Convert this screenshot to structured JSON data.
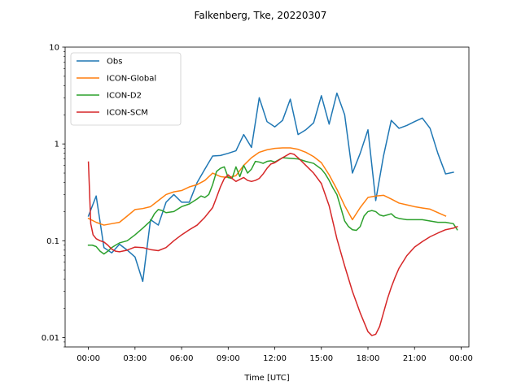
{
  "chart_data": {
    "type": "line",
    "title": "Falkenberg, Tke, 20220307",
    "xlabel": "Time [UTC]",
    "ylabel": "",
    "yscale": "log",
    "ylim": [
      0.008,
      10
    ],
    "xlim": [
      -1.5,
      24.5
    ],
    "x_unit": "hours since 00:00 UTC",
    "xticks": [
      0,
      3,
      6,
      9,
      12,
      15,
      18,
      21,
      24
    ],
    "xtick_labels": [
      "00:00",
      "03:00",
      "06:00",
      "09:00",
      "12:00",
      "15:00",
      "18:00",
      "21:00",
      "00:00"
    ],
    "yticks": [
      0.01,
      0.1,
      1,
      10
    ],
    "ytick_labels": [
      "0.01",
      "0.1",
      "1",
      "10"
    ],
    "legend_position": "top-left",
    "series": [
      {
        "name": "Obs",
        "color": "#1f77b4",
        "x": [
          0,
          0.5,
          1,
          1.5,
          2,
          2.5,
          3,
          3.5,
          4,
          4.5,
          5,
          5.5,
          6,
          6.5,
          7,
          7.5,
          8,
          8.5,
          9,
          9.5,
          10,
          10.5,
          11,
          11.5,
          12,
          12.5,
          13,
          13.5,
          14,
          14.5,
          15,
          15.5,
          16,
          16.5,
          17,
          17.5,
          18,
          18.5,
          19,
          19.5,
          20,
          20.5,
          21,
          21.5,
          22,
          22.5,
          23,
          23.5
        ],
        "values": [
          0.18,
          0.29,
          0.085,
          0.075,
          0.092,
          0.08,
          0.068,
          0.038,
          0.165,
          0.145,
          0.25,
          0.3,
          0.25,
          0.25,
          0.4,
          0.55,
          0.75,
          0.76,
          0.8,
          0.85,
          1.25,
          0.92,
          3.0,
          1.7,
          1.5,
          1.75,
          2.9,
          1.25,
          1.4,
          1.65,
          3.15,
          1.6,
          3.35,
          2.0,
          0.5,
          0.8,
          1.4,
          0.26,
          0.75,
          1.75,
          1.45,
          1.55,
          1.7,
          1.85,
          1.45,
          0.8,
          0.49,
          0.51
        ]
      },
      {
        "name": "ICON-Global",
        "color": "#ff7f0e",
        "x": [
          0,
          0.5,
          1,
          1.5,
          2,
          2.5,
          3,
          3.5,
          4,
          4.5,
          5,
          5.5,
          6,
          6.5,
          7,
          7.5,
          8,
          8.5,
          9,
          9.5,
          10,
          10.5,
          11,
          11.5,
          12,
          12.5,
          13,
          13.5,
          14,
          14.5,
          15,
          15.5,
          16,
          16.5,
          17,
          17.5,
          18,
          18.5,
          19,
          19.5,
          20,
          20.5,
          21,
          21.5,
          22,
          22.5,
          23
        ],
        "values": [
          0.17,
          0.155,
          0.145,
          0.15,
          0.155,
          0.18,
          0.21,
          0.215,
          0.225,
          0.26,
          0.3,
          0.32,
          0.33,
          0.36,
          0.38,
          0.42,
          0.5,
          0.46,
          0.45,
          0.47,
          0.6,
          0.72,
          0.82,
          0.87,
          0.9,
          0.91,
          0.91,
          0.88,
          0.82,
          0.74,
          0.64,
          0.48,
          0.34,
          0.23,
          0.165,
          0.22,
          0.28,
          0.29,
          0.295,
          0.27,
          0.245,
          0.235,
          0.225,
          0.218,
          0.212,
          0.195,
          0.18
        ]
      },
      {
        "name": "ICON-D2",
        "color": "#2ca02c",
        "x": [
          0,
          0.25,
          0.5,
          0.75,
          1,
          1.25,
          1.5,
          1.75,
          2,
          2.5,
          3,
          3.5,
          4,
          4.25,
          4.5,
          4.75,
          5,
          5.5,
          6,
          6.5,
          7,
          7.25,
          7.5,
          7.75,
          8,
          8.25,
          8.5,
          8.75,
          9,
          9.25,
          9.5,
          9.75,
          10,
          10.25,
          10.5,
          10.75,
          11,
          11.25,
          11.5,
          11.75,
          12,
          12.5,
          13,
          13.5,
          14,
          14.5,
          15,
          15.25,
          15.5,
          15.75,
          16,
          16.25,
          16.5,
          16.75,
          17,
          17.25,
          17.5,
          17.75,
          18,
          18.25,
          18.5,
          18.75,
          19,
          19.25,
          19.5,
          19.75,
          20,
          20.5,
          21,
          21.5,
          22,
          22.5,
          23,
          23.5,
          23.75
        ],
        "values": [
          0.09,
          0.09,
          0.087,
          0.078,
          0.073,
          0.078,
          0.085,
          0.09,
          0.095,
          0.1,
          0.115,
          0.135,
          0.16,
          0.19,
          0.21,
          0.205,
          0.195,
          0.2,
          0.225,
          0.24,
          0.27,
          0.29,
          0.28,
          0.3,
          0.38,
          0.52,
          0.56,
          0.58,
          0.45,
          0.44,
          0.58,
          0.46,
          0.6,
          0.5,
          0.55,
          0.66,
          0.65,
          0.63,
          0.66,
          0.67,
          0.65,
          0.72,
          0.71,
          0.7,
          0.66,
          0.63,
          0.55,
          0.49,
          0.42,
          0.35,
          0.3,
          0.22,
          0.16,
          0.14,
          0.13,
          0.128,
          0.14,
          0.18,
          0.2,
          0.205,
          0.2,
          0.185,
          0.18,
          0.185,
          0.19,
          0.175,
          0.17,
          0.165,
          0.165,
          0.165,
          0.16,
          0.155,
          0.155,
          0.15,
          0.13
        ]
      },
      {
        "name": "ICON-SCM",
        "color": "#d62728",
        "x": [
          0,
          0.15,
          0.3,
          0.5,
          0.75,
          1,
          1.25,
          1.5,
          1.75,
          2,
          2.5,
          3,
          3.5,
          4,
          4.5,
          5,
          5.5,
          6,
          6.5,
          7,
          7.5,
          8,
          8.25,
          8.5,
          8.75,
          9,
          9.25,
          9.5,
          9.75,
          10,
          10.25,
          10.5,
          10.75,
          11,
          11.25,
          11.5,
          11.75,
          12,
          12.5,
          13,
          13.25,
          13.5,
          14,
          14.5,
          15,
          15.5,
          16,
          16.5,
          17,
          17.5,
          18,
          18.25,
          18.5,
          18.75,
          19,
          19.25,
          19.5,
          19.75,
          20,
          20.5,
          21,
          21.5,
          22,
          22.5,
          23,
          23.5,
          23.75
        ],
        "values": [
          0.65,
          0.15,
          0.115,
          0.105,
          0.1,
          0.097,
          0.09,
          0.082,
          0.078,
          0.077,
          0.08,
          0.086,
          0.085,
          0.081,
          0.079,
          0.085,
          0.1,
          0.115,
          0.13,
          0.145,
          0.175,
          0.22,
          0.28,
          0.36,
          0.44,
          0.48,
          0.44,
          0.41,
          0.43,
          0.45,
          0.42,
          0.41,
          0.42,
          0.44,
          0.49,
          0.56,
          0.62,
          0.64,
          0.72,
          0.8,
          0.78,
          0.72,
          0.6,
          0.5,
          0.39,
          0.23,
          0.105,
          0.055,
          0.03,
          0.018,
          0.0115,
          0.0105,
          0.0108,
          0.013,
          0.018,
          0.025,
          0.033,
          0.042,
          0.052,
          0.07,
          0.086,
          0.098,
          0.11,
          0.12,
          0.13,
          0.135,
          0.14
        ]
      }
    ]
  }
}
